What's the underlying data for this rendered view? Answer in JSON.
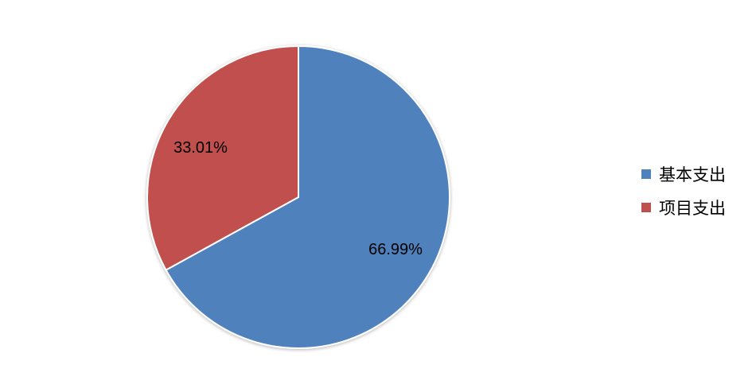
{
  "chart_data": {
    "type": "pie",
    "categories": [
      "基本支出",
      "项目支出"
    ],
    "values": [
      66.99,
      33.01
    ],
    "data_labels": [
      "66.99%",
      "33.01%"
    ],
    "colors": [
      "#4F81BD",
      "#C0504D"
    ],
    "start_angle": "12 o'clock",
    "direction": "clockwise",
    "legend_position": "right"
  }
}
